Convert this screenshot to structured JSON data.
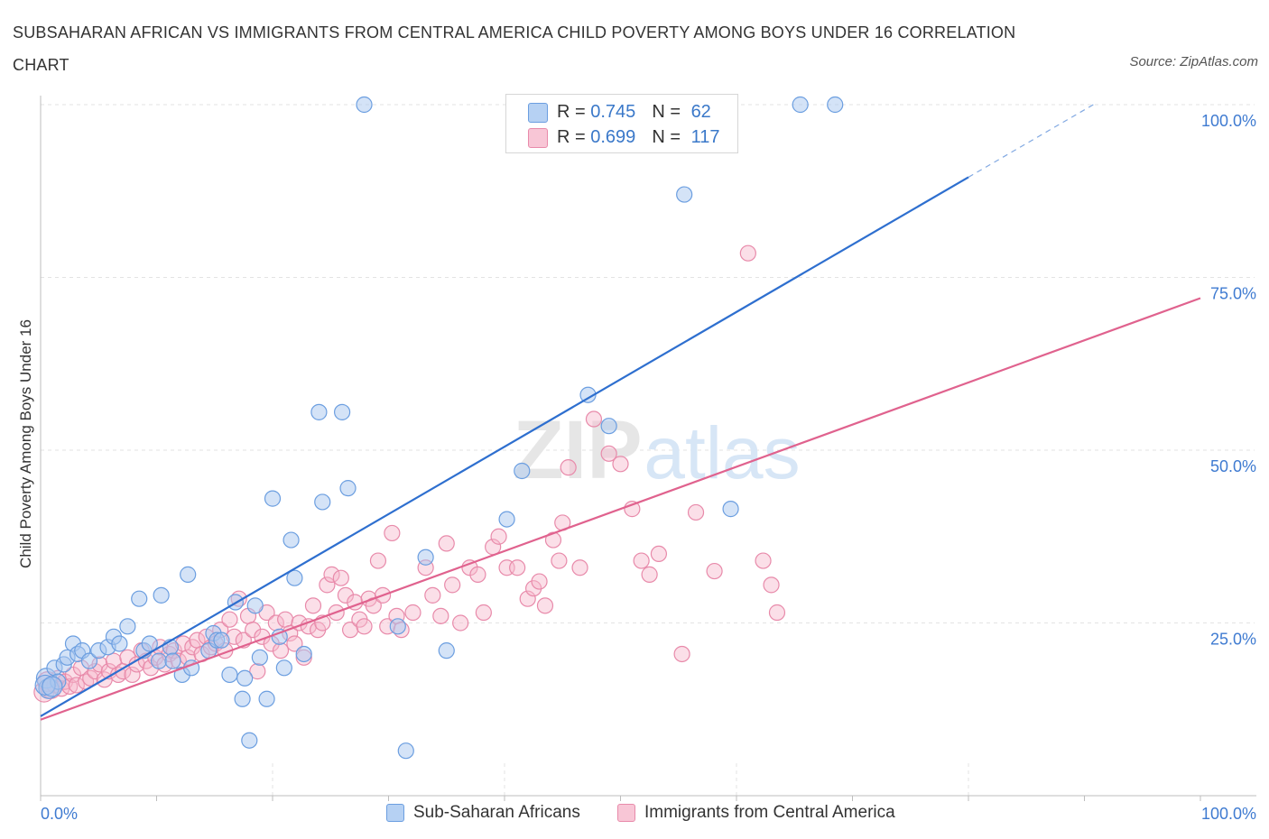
{
  "title": "SUBSAHARAN AFRICAN VS IMMIGRANTS FROM CENTRAL AMERICA CHILD POVERTY AMONG BOYS UNDER 16 CORRELATION CHART",
  "source": "Source: ZipAtlas.com",
  "watermark": {
    "zip": "ZIP",
    "atlas": "atlas"
  },
  "legend": [
    {
      "r_label": "R = ",
      "r_value": "0.745",
      "n_label": "N = ",
      "n_value": "62"
    },
    {
      "r_label": "R = ",
      "r_value": "0.699",
      "n_label": "N = ",
      "n_value": "117"
    }
  ],
  "bottom_legend": [
    "Sub-Saharan Africans",
    "Immigrants from Central America"
  ],
  "colors": {
    "blue_fill": "#a9c8f0",
    "blue_stroke": "#6b9ee0",
    "blue_line": "#2e6fcf",
    "pink_fill": "#f7b8cc",
    "pink_stroke": "#e88aaa",
    "pink_line": "#e0628e",
    "tick_label": "#3f7bd1",
    "grid": "#e3e3e3"
  },
  "chart_data": {
    "type": "scatter",
    "title": "SUBSAHARAN AFRICAN VS IMMIGRANTS FROM CENTRAL AMERICA CHILD POVERTY AMONG BOYS UNDER 16 CORRELATION CHART",
    "xlabel": "",
    "ylabel": "Child Poverty Among Boys Under 16",
    "xlim": [
      0,
      100
    ],
    "ylim": [
      0,
      100
    ],
    "x_tick_labels": [
      "0.0%",
      "100.0%"
    ],
    "y_ticks": [
      25,
      50,
      75,
      100
    ],
    "y_tick_labels": [
      "25.0%",
      "50.0%",
      "75.0%",
      "100.0%"
    ],
    "grid": true,
    "series": [
      {
        "name": "Sub-Saharan Africans",
        "R": 0.745,
        "N": 62,
        "trend": {
          "x0": 0,
          "y0": 11.5,
          "x1": 80,
          "y1": 89.5,
          "dashed_to_x": 91
        },
        "points": [
          [
            0.5,
            17
          ],
          [
            0.7,
            15.5
          ],
          [
            1.2,
            18.5
          ],
          [
            1.5,
            16.5
          ],
          [
            2,
            19
          ],
          [
            2.3,
            20
          ],
          [
            2.8,
            22
          ],
          [
            3.2,
            20.5
          ],
          [
            3.6,
            21
          ],
          [
            4.2,
            19.5
          ],
          [
            5,
            21
          ],
          [
            5.8,
            21.5
          ],
          [
            6.3,
            23
          ],
          [
            6.8,
            22
          ],
          [
            7.5,
            24.5
          ],
          [
            8.5,
            28.5
          ],
          [
            8.9,
            21
          ],
          [
            9.4,
            22
          ],
          [
            10.2,
            19.5
          ],
          [
            10.4,
            29
          ],
          [
            11.2,
            21.5
          ],
          [
            11.4,
            19.5
          ],
          [
            12.2,
            17.5
          ],
          [
            12.7,
            32
          ],
          [
            13,
            18.5
          ],
          [
            14.5,
            21
          ],
          [
            14.9,
            23.5
          ],
          [
            15.2,
            22.5
          ],
          [
            15.6,
            22.5
          ],
          [
            16.3,
            17.5
          ],
          [
            16.8,
            28
          ],
          [
            17.4,
            14
          ],
          [
            17.6,
            17
          ],
          [
            18,
            8
          ],
          [
            18.5,
            27.5
          ],
          [
            18.9,
            20
          ],
          [
            19.5,
            14
          ],
          [
            20,
            43
          ],
          [
            20.6,
            23
          ],
          [
            21,
            18.5
          ],
          [
            21.6,
            37
          ],
          [
            21.9,
            31.5
          ],
          [
            22.7,
            20.5
          ],
          [
            24,
            55.5
          ],
          [
            24.3,
            42.5
          ],
          [
            26,
            55.5
          ],
          [
            26.5,
            44.5
          ],
          [
            27.9,
            100
          ],
          [
            30.8,
            24.5
          ],
          [
            31.5,
            6.5
          ],
          [
            33.2,
            34.5
          ],
          [
            35,
            21
          ],
          [
            40.2,
            40
          ],
          [
            41.5,
            47
          ],
          [
            47.2,
            58
          ],
          [
            49,
            53.5
          ],
          [
            55.5,
            87
          ],
          [
            59.5,
            41.5
          ],
          [
            65.5,
            100
          ],
          [
            68.5,
            100
          ],
          [
            0.4,
            16
          ],
          [
            1,
            15.8
          ]
        ]
      },
      {
        "name": "Immigrants from Central America",
        "R": 0.699,
        "N": 117,
        "trend": {
          "x0": 0,
          "y0": 11,
          "x1": 100,
          "y1": 72
        },
        "points": [
          [
            0.3,
            15
          ],
          [
            0.6,
            16.5
          ],
          [
            0.9,
            15.5
          ],
          [
            1.2,
            16
          ],
          [
            1.5,
            17
          ],
          [
            1.8,
            15.5
          ],
          [
            2.1,
            16.5
          ],
          [
            2.5,
            15.8
          ],
          [
            2.8,
            17.5
          ],
          [
            3.1,
            16
          ],
          [
            3.5,
            18.5
          ],
          [
            3.9,
            16.5
          ],
          [
            4.3,
            17
          ],
          [
            4.7,
            18
          ],
          [
            5.1,
            19
          ],
          [
            5.5,
            16.8
          ],
          [
            5.9,
            18
          ],
          [
            6.3,
            19.5
          ],
          [
            6.7,
            17.5
          ],
          [
            7.1,
            18
          ],
          [
            7.5,
            20
          ],
          [
            7.9,
            17.5
          ],
          [
            8.3,
            19
          ],
          [
            8.7,
            21
          ],
          [
            9.1,
            19.5
          ],
          [
            9.5,
            18.5
          ],
          [
            9.9,
            20
          ],
          [
            10.3,
            21.5
          ],
          [
            10.7,
            19
          ],
          [
            11.1,
            20.5
          ],
          [
            11.5,
            21
          ],
          [
            11.9,
            19.5
          ],
          [
            12.3,
            22
          ],
          [
            12.7,
            20
          ],
          [
            13.1,
            21.5
          ],
          [
            13.5,
            22.5
          ],
          [
            13.9,
            20.5
          ],
          [
            14.3,
            23
          ],
          [
            14.7,
            21.5
          ],
          [
            15.1,
            22
          ],
          [
            15.5,
            24
          ],
          [
            15.9,
            21
          ],
          [
            16.3,
            25.5
          ],
          [
            16.7,
            23
          ],
          [
            17.1,
            28.5
          ],
          [
            17.5,
            22.5
          ],
          [
            17.9,
            26
          ],
          [
            18.3,
            24
          ],
          [
            18.7,
            18
          ],
          [
            19.1,
            23
          ],
          [
            19.5,
            26.5
          ],
          [
            19.9,
            22
          ],
          [
            20.3,
            25
          ],
          [
            20.7,
            21
          ],
          [
            21.1,
            25.5
          ],
          [
            21.5,
            23.5
          ],
          [
            21.9,
            22
          ],
          [
            22.3,
            25
          ],
          [
            22.7,
            20
          ],
          [
            23.1,
            24.5
          ],
          [
            23.5,
            27.5
          ],
          [
            23.9,
            24
          ],
          [
            24.3,
            25
          ],
          [
            24.7,
            30.5
          ],
          [
            25.1,
            32
          ],
          [
            25.5,
            26.5
          ],
          [
            25.9,
            31.5
          ],
          [
            26.3,
            29
          ],
          [
            26.7,
            24
          ],
          [
            27.1,
            28
          ],
          [
            27.5,
            25.5
          ],
          [
            27.9,
            24.5
          ],
          [
            28.3,
            28.5
          ],
          [
            28.7,
            27.5
          ],
          [
            29.1,
            34
          ],
          [
            29.5,
            29
          ],
          [
            29.9,
            24.5
          ],
          [
            30.3,
            38
          ],
          [
            30.7,
            26
          ],
          [
            31.1,
            24
          ],
          [
            32.1,
            26.5
          ],
          [
            33.2,
            33
          ],
          [
            33.8,
            29
          ],
          [
            34.5,
            26
          ],
          [
            35,
            36.5
          ],
          [
            35.5,
            30.5
          ],
          [
            36.2,
            25
          ],
          [
            37,
            33
          ],
          [
            37.7,
            32
          ],
          [
            38.2,
            26.5
          ],
          [
            39,
            36
          ],
          [
            39.5,
            37.5
          ],
          [
            40.2,
            33
          ],
          [
            41.1,
            33
          ],
          [
            42,
            28.5
          ],
          [
            42.5,
            30
          ],
          [
            43,
            31
          ],
          [
            43.5,
            27.5
          ],
          [
            44.2,
            37
          ],
          [
            44.7,
            34
          ],
          [
            45,
            39.5
          ],
          [
            45.5,
            47.5
          ],
          [
            46.5,
            33
          ],
          [
            47.7,
            54.5
          ],
          [
            49,
            49.5
          ],
          [
            50,
            48
          ],
          [
            51,
            41.5
          ],
          [
            51.8,
            34
          ],
          [
            52.5,
            32
          ],
          [
            53.3,
            35
          ],
          [
            55.3,
            20.5
          ],
          [
            56.5,
            41
          ],
          [
            58.1,
            32.5
          ],
          [
            61,
            78.5
          ],
          [
            62.3,
            34
          ],
          [
            63,
            30.5
          ],
          [
            63.5,
            26.5
          ]
        ]
      }
    ]
  }
}
